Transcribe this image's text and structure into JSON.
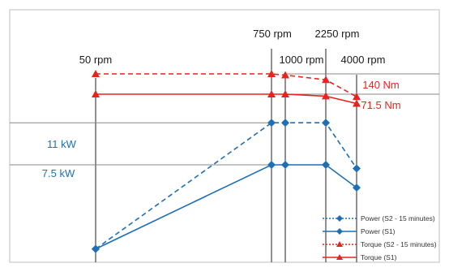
{
  "chart_data": {
    "type": "line",
    "x_rpm": [
      50,
      750,
      1000,
      2250,
      4000
    ],
    "series": [
      {
        "name": "Power (S2 - 15 minutes)",
        "quantity": "power",
        "style": "dotted",
        "color": "#1f6fb5",
        "marker": "diamond",
        "values_kw": [
          0.5,
          11,
          11,
          11,
          7.2
        ]
      },
      {
        "name": "Power (S1)",
        "quantity": "power",
        "style": "solid",
        "color": "#1f6fb5",
        "marker": "diamond",
        "values_kw": [
          0.5,
          7.5,
          7.5,
          7.5,
          5.6
        ]
      },
      {
        "name": "Torque (S2 - 15 minutes)",
        "quantity": "torque",
        "style": "dotted",
        "color": "#e8231f",
        "marker": "triangle",
        "values_nm": [
          140,
          140,
          136,
          120,
          63
        ]
      },
      {
        "name": "Torque (S1)",
        "quantity": "torque",
        "style": "solid",
        "color": "#e8231f",
        "marker": "triangle",
        "values_nm": [
          71.5,
          71.5,
          71.5,
          65,
          40
        ]
      }
    ],
    "rpm_labels": [
      "50 rpm",
      "750 rpm",
      "1000 rpm",
      "2250 rpm",
      "4000 rpm"
    ],
    "power_labels": [
      "11 kW",
      "7.5 kW"
    ],
    "torque_labels": [
      "140 Nm",
      "71.5 Nm"
    ],
    "legend": {
      "position": "bottom-right",
      "items": [
        "Power (S2 - 15 minutes)",
        "Power (S1)",
        "Torque (S2 - 15 minutes)",
        "Torque (S1)"
      ]
    },
    "colors": {
      "power": "#1f6fb5",
      "torque": "#e8231f",
      "frame": "#bfbfbf",
      "guide": "#888888"
    }
  }
}
